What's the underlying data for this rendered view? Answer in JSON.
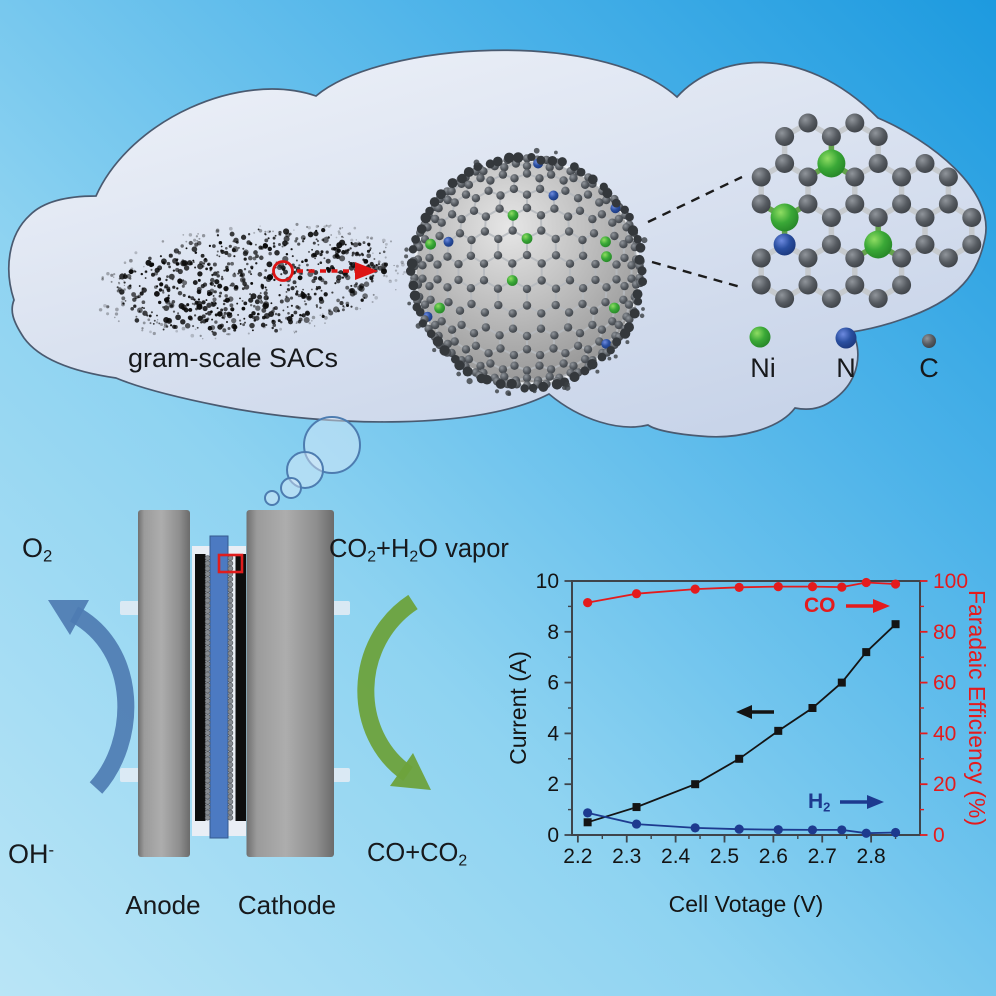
{
  "cloud_section": {
    "powder_label": "gram-scale SACs",
    "atom_legend": [
      {
        "name": "Ni",
        "color": "#3aa837"
      },
      {
        "name": "N",
        "color": "#2a4fa0"
      },
      {
        "name": "C",
        "color": "#4b4f54"
      }
    ]
  },
  "electrolyzer_section": {
    "o2": [
      {
        "t": "O"
      },
      {
        "t": "2",
        "sub": true
      }
    ],
    "oh": [
      {
        "t": "OH"
      },
      {
        "t": "-",
        "sup": true
      }
    ],
    "co2_h2o": [
      {
        "t": "CO"
      },
      {
        "t": "2",
        "sub": true
      },
      {
        "t": "+H"
      },
      {
        "t": "2",
        "sub": true
      },
      {
        "t": "O vapor"
      }
    ],
    "co_co2": [
      {
        "t": "CO+CO"
      },
      {
        "t": "2",
        "sub": true
      }
    ],
    "anode_label": "Anode",
    "cathode_label": "Cathode"
  },
  "chart_data": {
    "type": "line",
    "xlabel": "Cell Votage (V)",
    "ylabel_left": "Current (A)",
    "ylabel_right": "Faradaic Efficiency (%)",
    "xlim": [
      2.188,
      2.9
    ],
    "ylim_left": [
      0,
      10
    ],
    "ylim_right": [
      0,
      100
    ],
    "x_ticks": [
      2.2,
      2.3,
      2.4,
      2.5,
      2.6,
      2.7,
      2.8
    ],
    "y_left_ticks": [
      0,
      2,
      4,
      6,
      8,
      10
    ],
    "y_right_ticks": [
      0,
      20,
      40,
      60,
      80,
      100
    ],
    "x": [
      2.22,
      2.32,
      2.44,
      2.53,
      2.61,
      2.68,
      2.74,
      2.79,
      2.85
    ],
    "series": [
      {
        "name": "Current",
        "axis": "left",
        "color": "#141414",
        "marker": "square",
        "values": [
          0.5,
          1.1,
          2.0,
          3.0,
          4.1,
          5.0,
          6.0,
          7.2,
          8.3
        ]
      },
      {
        "name": "CO Faradaic Efficiency",
        "axis": "right",
        "color": "#e41b1d",
        "marker": "circle",
        "values": [
          91.5,
          95.0,
          96.8,
          97.5,
          97.8,
          97.8,
          97.6,
          99.4,
          98.8
        ]
      },
      {
        "name": "H2 Faradaic Efficiency",
        "axis": "right",
        "color": "#1d3a8f",
        "marker": "circle",
        "values": [
          8.7,
          4.3,
          2.8,
          2.3,
          2.1,
          2.0,
          2.0,
          0.7,
          1.0
        ]
      }
    ],
    "annotations": {
      "co": {
        "label": "CO",
        "color": "#e41b1d"
      },
      "h2": {
        "segments": [
          {
            "t": "H"
          },
          {
            "t": "2",
            "sub": true
          }
        ],
        "color": "#1d3a8f"
      },
      "current_arrow": {
        "color": "#141414"
      }
    },
    "axis_color_left": "#141414",
    "axis_color_right": "#e41b1d",
    "grid": false,
    "legend_position": "none"
  }
}
